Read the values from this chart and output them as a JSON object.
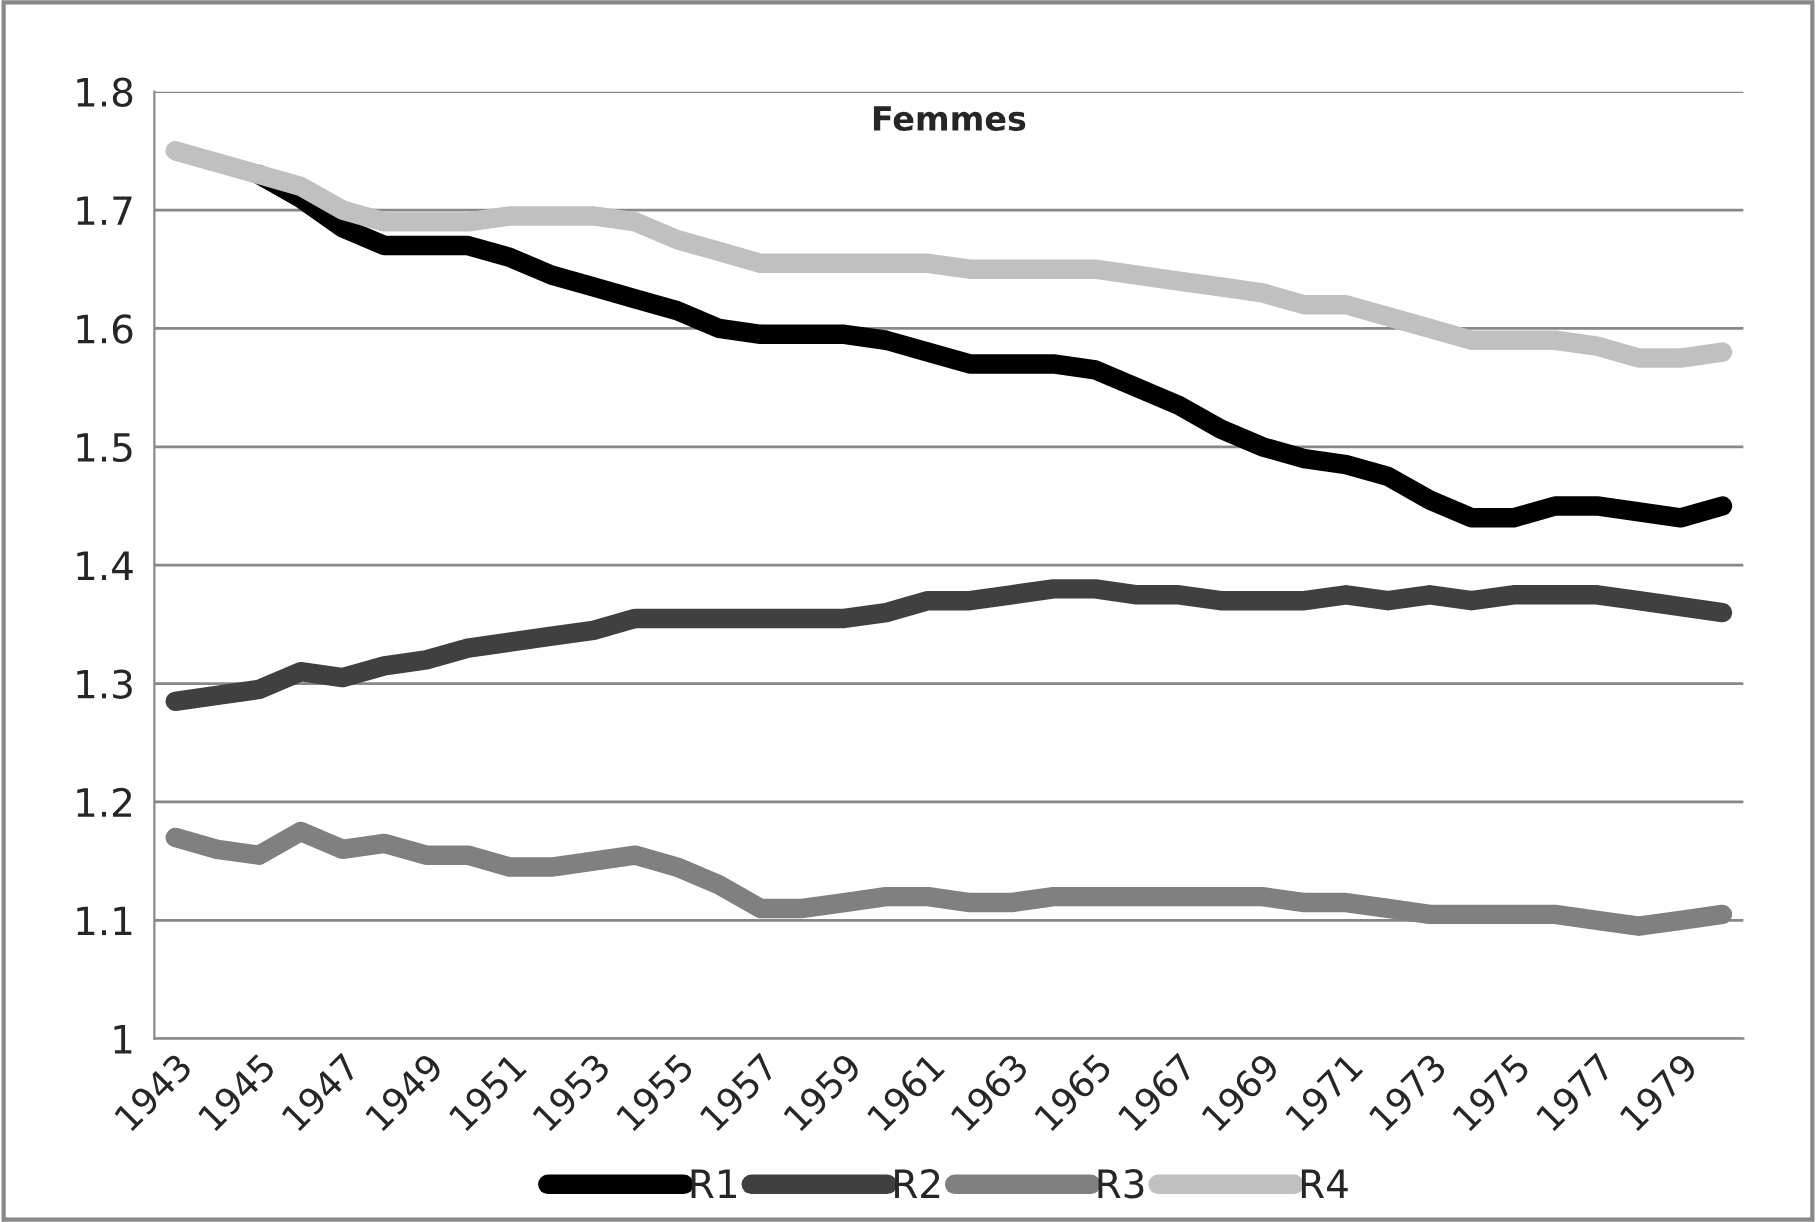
{
  "chart_data": {
    "type": "line",
    "title": "Femmes",
    "categories": [
      "1943",
      null,
      "1945",
      null,
      "1947",
      null,
      "1949",
      null,
      "1951",
      null,
      "1953",
      null,
      "1955",
      null,
      "1957",
      null,
      "1959",
      null,
      "1961",
      null,
      "1963",
      null,
      "1965",
      null,
      "1967",
      null,
      "1969",
      null,
      "1971",
      null,
      "1973",
      null,
      "1975",
      null,
      "1977",
      null,
      "1979",
      null
    ],
    "series": [
      {
        "name": "R1",
        "color": "#000000",
        "values": [
          null,
          null,
          1.73,
          1.71,
          1.685,
          1.67,
          1.67,
          1.67,
          1.66,
          1.645,
          1.635,
          1.625,
          1.615,
          1.6,
          1.595,
          1.595,
          1.595,
          1.59,
          1.58,
          1.57,
          1.57,
          1.57,
          1.565,
          1.55,
          1.535,
          1.515,
          1.5,
          1.49,
          1.485,
          1.475,
          1.455,
          1.44,
          1.44,
          1.45,
          1.45,
          1.445,
          1.44,
          1.45
        ]
      },
      {
        "name": "R2",
        "color": "#404040",
        "values": [
          1.285,
          1.29,
          1.295,
          1.31,
          1.305,
          1.315,
          1.32,
          1.33,
          1.335,
          1.34,
          1.345,
          1.355,
          1.355,
          1.355,
          1.355,
          1.355,
          1.355,
          1.36,
          1.37,
          1.37,
          1.375,
          1.38,
          1.38,
          1.375,
          1.375,
          1.37,
          1.37,
          1.37,
          1.375,
          1.37,
          1.375,
          1.37,
          1.375,
          1.375,
          1.375,
          1.37,
          1.365,
          1.36
        ]
      },
      {
        "name": "R3",
        "color": "#808080",
        "values": [
          1.17,
          1.16,
          1.155,
          1.175,
          1.16,
          1.165,
          1.155,
          1.155,
          1.145,
          1.145,
          1.15,
          1.155,
          1.145,
          1.13,
          1.11,
          1.11,
          1.115,
          1.12,
          1.12,
          1.115,
          1.115,
          1.12,
          1.12,
          1.12,
          1.12,
          1.12,
          1.12,
          1.115,
          1.115,
          1.11,
          1.105,
          1.105,
          1.105,
          1.105,
          1.1,
          1.095,
          1.1,
          1.105
        ]
      },
      {
        "name": "R4",
        "color": "#c0c0c0",
        "values": [
          1.75,
          1.74,
          1.73,
          1.72,
          1.7,
          1.69,
          1.69,
          1.69,
          1.695,
          1.695,
          1.695,
          1.69,
          1.675,
          1.665,
          1.655,
          1.655,
          1.655,
          1.655,
          1.655,
          1.65,
          1.65,
          1.65,
          1.65,
          1.645,
          1.64,
          1.635,
          1.63,
          1.62,
          1.62,
          1.61,
          1.6,
          1.59,
          1.59,
          1.59,
          1.585,
          1.575,
          1.575,
          1.58
        ]
      }
    ],
    "ylim": [
      1,
      1.8
    ],
    "yticks": [
      1,
      1.1,
      1.2,
      1.3,
      1.4,
      1.5,
      1.6,
      1.7,
      1.8
    ],
    "grid": "y",
    "legend": "bottom",
    "marker": "none",
    "line_style": "solid"
  }
}
